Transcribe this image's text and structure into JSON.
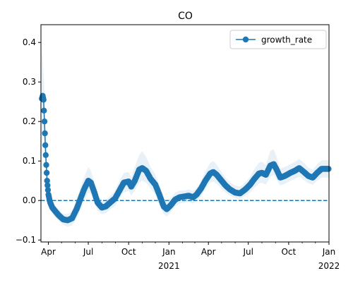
{
  "chart_data": {
    "type": "line",
    "title": "CO",
    "xlabel": "",
    "ylabel": "",
    "xlim": [
      "2020-03-15",
      "2022-01-01"
    ],
    "ylim": [
      -0.105,
      0.445
    ],
    "y_ticks": [
      -0.1,
      0.0,
      0.1,
      0.2,
      0.3,
      0.4
    ],
    "y_tick_labels": [
      "−0.1",
      "0.0",
      "0.1",
      "0.2",
      "0.3",
      "0.4"
    ],
    "x_ticks": [
      {
        "date": "2020-04-01",
        "label": "Apr"
      },
      {
        "date": "2020-07-01",
        "label": "Jul"
      },
      {
        "date": "2020-10-01",
        "label": "Oct"
      },
      {
        "date": "2021-01-01",
        "label": "Jan",
        "sublabel": "2021"
      },
      {
        "date": "2021-04-01",
        "label": "Apr"
      },
      {
        "date": "2021-07-01",
        "label": "Jul"
      },
      {
        "date": "2021-10-01",
        "label": "Oct"
      },
      {
        "date": "2022-01-01",
        "label": "Jan",
        "sublabel": "2022"
      }
    ],
    "reference_line": {
      "y": 0.0,
      "style": "dashed"
    },
    "legend": {
      "position": "top-right",
      "entries": [
        "growth_rate"
      ]
    },
    "series": [
      {
        "name": "growth_rate",
        "color": "#1f77b4",
        "band_color": "#1f77b4",
        "marker": "circle",
        "points": [
          [
            "2020-03-17",
            0.258,
            0.1,
            0.38
          ],
          [
            "2020-03-19",
            0.265,
            0.15,
            0.36
          ],
          [
            "2020-03-21",
            0.255,
            0.17,
            0.32
          ],
          [
            "2020-03-23",
            0.2,
            0.13,
            0.27
          ],
          [
            "2020-03-25",
            0.14,
            0.09,
            0.2
          ],
          [
            "2020-03-27",
            0.09,
            0.05,
            0.14
          ],
          [
            "2020-03-29",
            0.05,
            0.02,
            0.09
          ],
          [
            "2020-04-01",
            0.015,
            -0.005,
            0.04
          ],
          [
            "2020-04-05",
            -0.005,
            -0.02,
            0.01
          ],
          [
            "2020-04-10",
            -0.018,
            -0.03,
            -0.005
          ],
          [
            "2020-04-15",
            -0.025,
            -0.04,
            -0.012
          ],
          [
            "2020-04-25",
            -0.038,
            -0.052,
            -0.024
          ],
          [
            "2020-05-05",
            -0.048,
            -0.062,
            -0.034
          ],
          [
            "2020-05-15",
            -0.05,
            -0.066,
            -0.034
          ],
          [
            "2020-05-25",
            -0.045,
            -0.063,
            -0.027
          ],
          [
            "2020-06-05",
            -0.02,
            -0.045,
            0.005
          ],
          [
            "2020-06-15",
            0.01,
            -0.02,
            0.04
          ],
          [
            "2020-06-22",
            0.03,
            0.0,
            0.06
          ],
          [
            "2020-07-01",
            0.05,
            0.02,
            0.085
          ],
          [
            "2020-07-07",
            0.045,
            0.015,
            0.075
          ],
          [
            "2020-07-15",
            0.02,
            -0.005,
            0.045
          ],
          [
            "2020-07-22",
            -0.005,
            -0.025,
            0.015
          ],
          [
            "2020-08-01",
            -0.018,
            -0.035,
            0.0
          ],
          [
            "2020-08-10",
            -0.015,
            -0.032,
            0.002
          ],
          [
            "2020-08-20",
            -0.005,
            -0.022,
            0.012
          ],
          [
            "2020-08-31",
            0.005,
            -0.015,
            0.025
          ],
          [
            "2020-09-10",
            0.025,
            0.005,
            0.05
          ],
          [
            "2020-09-20",
            0.045,
            0.02,
            0.07
          ],
          [
            "2020-10-01",
            0.048,
            0.025,
            0.072
          ],
          [
            "2020-10-07",
            0.035,
            0.012,
            0.06
          ],
          [
            "2020-10-15",
            0.05,
            0.025,
            0.085
          ],
          [
            "2020-10-25",
            0.078,
            0.045,
            0.115
          ],
          [
            "2020-11-01",
            0.082,
            0.05,
            0.125
          ],
          [
            "2020-11-10",
            0.075,
            0.045,
            0.11
          ],
          [
            "2020-11-20",
            0.055,
            0.03,
            0.085
          ],
          [
            "2020-12-01",
            0.04,
            0.015,
            0.065
          ],
          [
            "2020-12-10",
            0.015,
            -0.01,
            0.04
          ],
          [
            "2020-12-20",
            -0.015,
            -0.035,
            0.005
          ],
          [
            "2020-12-27",
            -0.022,
            -0.04,
            -0.002
          ],
          [
            "2021-01-05",
            -0.012,
            -0.03,
            0.006
          ],
          [
            "2021-01-15",
            0.002,
            -0.015,
            0.02
          ],
          [
            "2021-01-25",
            0.008,
            -0.008,
            0.025
          ],
          [
            "2021-02-05",
            0.01,
            -0.005,
            0.025
          ],
          [
            "2021-02-15",
            0.012,
            -0.004,
            0.028
          ],
          [
            "2021-02-25",
            0.008,
            -0.008,
            0.024
          ],
          [
            "2021-03-05",
            0.015,
            -0.002,
            0.032
          ],
          [
            "2021-03-15",
            0.03,
            0.01,
            0.05
          ],
          [
            "2021-03-25",
            0.05,
            0.03,
            0.075
          ],
          [
            "2021-04-05",
            0.068,
            0.045,
            0.095
          ],
          [
            "2021-04-12",
            0.072,
            0.048,
            0.1
          ],
          [
            "2021-04-20",
            0.065,
            0.042,
            0.09
          ],
          [
            "2021-05-01",
            0.05,
            0.03,
            0.072
          ],
          [
            "2021-05-10",
            0.038,
            0.02,
            0.058
          ],
          [
            "2021-05-20",
            0.028,
            0.012,
            0.046
          ],
          [
            "2021-06-01",
            0.02,
            0.005,
            0.038
          ],
          [
            "2021-06-12",
            0.018,
            0.003,
            0.035
          ],
          [
            "2021-06-24",
            0.028,
            0.012,
            0.046
          ],
          [
            "2021-07-05",
            0.04,
            0.02,
            0.06
          ],
          [
            "2021-07-15",
            0.055,
            0.032,
            0.08
          ],
          [
            "2021-07-25",
            0.068,
            0.043,
            0.095
          ],
          [
            "2021-08-01",
            0.07,
            0.045,
            0.098
          ],
          [
            "2021-08-10",
            0.065,
            0.04,
            0.09
          ],
          [
            "2021-08-20",
            0.088,
            0.06,
            0.125
          ],
          [
            "2021-08-28",
            0.092,
            0.065,
            0.13
          ],
          [
            "2021-09-05",
            0.075,
            0.05,
            0.105
          ],
          [
            "2021-09-12",
            0.058,
            0.038,
            0.08
          ],
          [
            "2021-09-22",
            0.062,
            0.042,
            0.085
          ],
          [
            "2021-10-05",
            0.07,
            0.05,
            0.092
          ],
          [
            "2021-10-15",
            0.075,
            0.055,
            0.098
          ],
          [
            "2021-10-25",
            0.082,
            0.06,
            0.105
          ],
          [
            "2021-11-05",
            0.072,
            0.052,
            0.095
          ],
          [
            "2021-11-15",
            0.062,
            0.043,
            0.083
          ],
          [
            "2021-11-25",
            0.058,
            0.04,
            0.078
          ],
          [
            "2021-12-05",
            0.07,
            0.05,
            0.092
          ],
          [
            "2021-12-15",
            0.08,
            0.058,
            0.102
          ],
          [
            "2021-12-31",
            0.08,
            0.058,
            0.102
          ]
        ]
      }
    ]
  }
}
